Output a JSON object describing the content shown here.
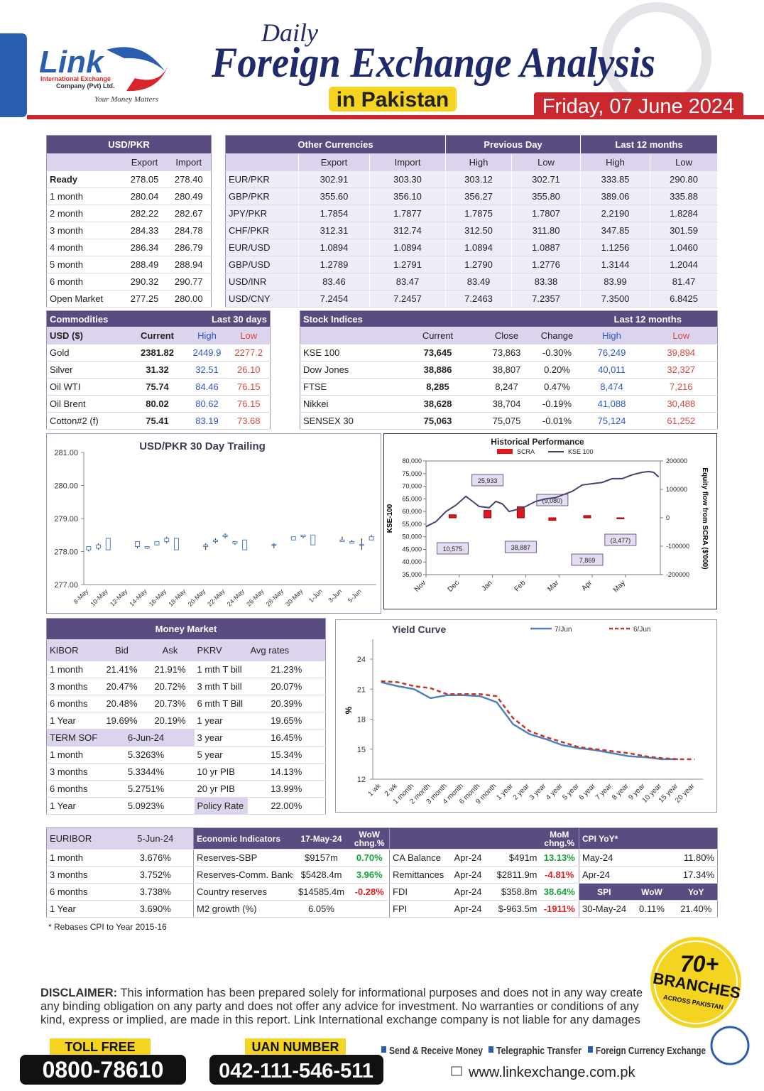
{
  "header": {
    "brand": "Link",
    "company_line1": "International Exchange",
    "company_line2": "Company (Pvt) Ltd.",
    "tagline": "Your Money Matters",
    "title_daily": "Daily",
    "title_main": "Foreign Exchange Analysis",
    "title_sub": "in Pakistan",
    "date": "Friday, 07 June 2024"
  },
  "usd_pkr": {
    "title": "USD/PKR",
    "columns": [
      "Export",
      "Import"
    ],
    "rows": [
      [
        "Ready",
        "278.05",
        "278.40"
      ],
      [
        "1 month",
        "280.04",
        "280.49"
      ],
      [
        "2 month",
        "282.22",
        "282.67"
      ],
      [
        "3 month",
        "284.33",
        "284.78"
      ],
      [
        "4 month",
        "286.34",
        "286.79"
      ],
      [
        "5 month",
        "288.49",
        "288.94"
      ],
      [
        "6 month",
        "290.32",
        "290.77"
      ],
      [
        "Open Market",
        "277.25",
        "280.00"
      ]
    ]
  },
  "other_currencies": {
    "title": "Other Currencies",
    "groups": [
      "Previous Day",
      "Last 12 months"
    ],
    "columns": [
      "Export",
      "Import",
      "High",
      "Low",
      "High",
      "Low"
    ],
    "rows": [
      [
        "EUR/PKR",
        "302.91",
        "303.30",
        "303.12",
        "302.71",
        "333.85",
        "290.80"
      ],
      [
        "GBP/PKR",
        "355.60",
        "356.10",
        "356.27",
        "355.80",
        "389.06",
        "335.88"
      ],
      [
        "JPY/PKR",
        "1.7854",
        "1.7877",
        "1.7875",
        "1.7807",
        "2.2190",
        "1.8284"
      ],
      [
        "CHF/PKR",
        "312.31",
        "312.74",
        "312.50",
        "311.80",
        "347.85",
        "301.59"
      ],
      [
        "EUR/USD",
        "1.0894",
        "1.0894",
        "1.0894",
        "1.0887",
        "1.1256",
        "1.0460"
      ],
      [
        "GBP/USD",
        "1.2789",
        "1.2791",
        "1.2790",
        "1.2776",
        "1.3144",
        "1.2044"
      ],
      [
        "USD/INR",
        "83.46",
        "83.47",
        "83.49",
        "83.38",
        "83.99",
        "81.47"
      ],
      [
        "USD/CNY",
        "7.2454",
        "7.2457",
        "7.2463",
        "7.2357",
        "7.3500",
        "6.8425"
      ]
    ]
  },
  "commodities": {
    "title": "Commodities",
    "period": "Last 30 days",
    "columns": [
      "USD ($)",
      "Current",
      "High",
      "Low"
    ],
    "rows": [
      [
        "Gold",
        "2381.82",
        "2449.9",
        "2277.2"
      ],
      [
        "Silver",
        "31.32",
        "32.51",
        "26.10"
      ],
      [
        "Oil WTI",
        "75.74",
        "84.46",
        "76.15"
      ],
      [
        "Oil Brent",
        "80.02",
        "80.62",
        "76.15"
      ],
      [
        "Cotton#2 (f)",
        "75.41",
        "83.19",
        "73.68"
      ]
    ]
  },
  "stock_indices": {
    "title": "Stock Indices",
    "period": "Last 12 months",
    "columns": [
      "Current",
      "Close",
      "Change",
      "High",
      "Low"
    ],
    "rows": [
      [
        "KSE 100",
        "73,645",
        "73,863",
        "-0.30%",
        "76,249",
        "39,894"
      ],
      [
        "Dow Jones",
        "38,886",
        "38,807",
        "0.20%",
        "40,011",
        "32,327"
      ],
      [
        "FTSE",
        "8,285",
        "8,247",
        "0.47%",
        "8,474",
        "7,216"
      ],
      [
        "Nikkei",
        "38,628",
        "38,704",
        "-0.19%",
        "41,088",
        "30,488"
      ],
      [
        "SENSEX 30",
        "75,063",
        "75,075",
        "-0.01%",
        "75,124",
        "61,252"
      ]
    ]
  },
  "money_market": {
    "title": "Money Market",
    "kibor_columns": [
      "KIBOR",
      "Bid",
      "Ask"
    ],
    "kibor": [
      [
        "1 month",
        "21.41%",
        "21.91%"
      ],
      [
        "3 months",
        "20.47%",
        "20.72%"
      ],
      [
        "6 months",
        "20.48%",
        "20.73%"
      ],
      [
        "1 Year",
        "19.69%",
        "20.19%"
      ]
    ],
    "sofr_header": [
      "TERM SOFR",
      "6-Jun-24"
    ],
    "sofr": [
      [
        "1 month",
        "5.3263%"
      ],
      [
        "3 months",
        "5.3344%"
      ],
      [
        "6 months",
        "5.2751%"
      ],
      [
        "1 Year",
        "5.0923%"
      ]
    ],
    "pkrv_columns": [
      "PKRV",
      "Avg rates"
    ],
    "pkrv": [
      [
        "1 mth T bill",
        "21.23%"
      ],
      [
        "3 mth T bill",
        "20.07%"
      ],
      [
        "6 mth T Bill",
        "20.39%"
      ],
      [
        "1 year",
        "19.65%"
      ],
      [
        "3 year",
        "16.45%"
      ],
      [
        "5 year",
        "15.34%"
      ],
      [
        "10 yr PIB",
        "14.13%"
      ],
      [
        "20 yr PIB",
        "13.99%"
      ],
      [
        "Policy Rate",
        "22.00%"
      ]
    ]
  },
  "euribor": {
    "header": [
      "EURIBOR",
      "5-Jun-24"
    ],
    "rows": [
      [
        "1 month",
        "3.676%"
      ],
      [
        "3 months",
        "3.752%"
      ],
      [
        "6 months",
        "3.738%"
      ],
      [
        "1 Year",
        "3.690%"
      ]
    ]
  },
  "economic_indicators": {
    "title": "Economic Indicators",
    "date": "17-May-24",
    "wow": "WoW chng.%",
    "mom": "MoM chng.%",
    "weekly": [
      [
        "Reserves-SBP",
        "$9157m",
        "0.70%"
      ],
      [
        "Reserves-Comm. Banks",
        "$5428.4m",
        "3.96%"
      ],
      [
        "Country reserves",
        "$14585.4m",
        "-0.28%"
      ],
      [
        "M2 growth (%)",
        "6.05%"
      ]
    ],
    "monthly": [
      [
        "CA Balance",
        "Apr-24",
        "$491m",
        "13.13%"
      ],
      [
        "Remittances",
        "Apr-24",
        "$2811.9m",
        "-4.81%"
      ],
      [
        "FDI",
        "Apr-24",
        "$358.8m",
        "38.64%"
      ],
      [
        "FPI",
        "Apr-24",
        "$-963.5m",
        "-1911%"
      ]
    ]
  },
  "cpi": {
    "title": "CPI YoY*",
    "rows": [
      [
        "May-24",
        "11.80%"
      ],
      [
        "Apr-24",
        "17.34%"
      ]
    ],
    "spi_columns": [
      "SPI",
      "WoW",
      "YoY"
    ],
    "spi": [
      [
        "30-May-24",
        "0.11%",
        "21.40%"
      ]
    ]
  },
  "footnote": "* Rebases CPI to Year 2015-16",
  "badge": {
    "count": "70+",
    "label": "BRANCHES",
    "sub": "ACROSS PAKISTAN"
  },
  "disclaimer": {
    "label": "DISCLAIMER:",
    "text": "This information has been prepared solely for informational purposes and does not in any way create any binding obligation on any  party and does not offer any advice for investment. No warranties or conditions of any kind, express or implied, are made in this report. Link International exchange company is not liable for any damages"
  },
  "footer": {
    "toll_free_label": "TOLL FREE",
    "toll_free": "0800-78610",
    "uan_label": "UAN NUMBER",
    "uan": "042-111-546-511",
    "services": [
      "Send & Receive Money",
      "Telegraphic Transfer",
      "Foreign Currency Exchange"
    ],
    "website": "www.linkexchange.com.pk"
  },
  "chart_data": [
    {
      "type": "candlestick",
      "title": "USD/PKR 30 Day Trailing",
      "color": "#4f81bd",
      "categories": [
        "8-May",
        null,
        "10-May",
        null,
        "12-May",
        null,
        "14-May",
        null,
        "16-May",
        null,
        "18-May",
        null,
        "20-May",
        null,
        "22-May",
        null,
        "24-May",
        null,
        "26-May",
        null,
        "28-May",
        null,
        "30-May",
        null,
        "1-Jun",
        null,
        "3-Jun",
        null,
        "5-Jun",
        null
      ],
      "open": [
        278.05,
        278.1,
        278.05,
        null,
        null,
        278.15,
        278.1,
        278.2,
        278.3,
        278.05,
        null,
        null,
        278.15,
        278.3,
        278.45,
        278.25,
        278.05,
        null,
        null,
        278.2,
        null,
        278.35,
        278.45,
        278.2,
        null,
        null,
        278.3,
        278.25,
        278.2,
        278.35
      ],
      "high": [
        278.15,
        278.25,
        278.4,
        null,
        null,
        278.3,
        278.15,
        278.3,
        278.45,
        278.4,
        null,
        null,
        278.25,
        278.4,
        278.55,
        278.3,
        278.35,
        null,
        null,
        278.25,
        null,
        278.45,
        278.5,
        278.5,
        null,
        null,
        278.45,
        278.35,
        278.4,
        278.5
      ],
      "low": [
        278.0,
        278.05,
        278.05,
        null,
        null,
        278.1,
        278.08,
        278.18,
        278.25,
        278.05,
        null,
        null,
        278.05,
        278.25,
        278.4,
        278.2,
        278.05,
        null,
        null,
        278.1,
        null,
        278.35,
        278.4,
        278.2,
        null,
        null,
        278.3,
        278.25,
        278.05,
        278.35
      ],
      "close": [
        278.15,
        278.2,
        278.4,
        null,
        null,
        278.3,
        278.15,
        278.3,
        278.4,
        278.4,
        null,
        null,
        278.2,
        278.35,
        278.5,
        278.3,
        278.35,
        null,
        null,
        278.21,
        null,
        278.45,
        278.5,
        278.5,
        null,
        null,
        278.35,
        278.3,
        278.21,
        278.45
      ],
      "ylim": [
        277,
        281
      ],
      "yticks": [
        {
          "value": 277,
          "label": "277.00"
        },
        {
          "value": 278,
          "label": "278.00"
        },
        {
          "value": 279,
          "label": "279.00"
        },
        {
          "value": 280,
          "label": "280.00"
        },
        {
          "value": 281,
          "label": "281.00"
        }
      ]
    },
    {
      "type": "combo",
      "title": "Historical Performance",
      "ylabel": "KSE-100",
      "y2label": "Equity flow from SCRA ($'000)",
      "xlim": [
        0,
        7.05
      ],
      "xticks": [
        {
          "value": 0,
          "label": "Nov"
        },
        {
          "value": 1,
          "label": "Dec"
        },
        {
          "value": 2,
          "label": "Jan"
        },
        {
          "value": 3,
          "label": "Feb"
        },
        {
          "value": 4,
          "label": "Mar"
        },
        {
          "value": 5,
          "label": "Apr"
        },
        {
          "value": 6,
          "label": "May"
        }
      ],
      "ylim": [
        35000,
        80000
      ],
      "yticks": [
        {
          "value": 35000,
          "label": "35,000"
        },
        {
          "value": 40000,
          "label": "40,000"
        },
        {
          "value": 45000,
          "label": "45,000"
        },
        {
          "value": 50000,
          "label": "50,000"
        },
        {
          "value": 55000,
          "label": "55,000"
        },
        {
          "value": 60000,
          "label": "60,000"
        },
        {
          "value": 65000,
          "label": "65,000"
        },
        {
          "value": 70000,
          "label": "70,000"
        },
        {
          "value": 75000,
          "label": "75,000"
        },
        {
          "value": 80000,
          "label": "80,000"
        }
      ],
      "y2lim": [
        -200000,
        200000
      ],
      "y2ticks": [
        -200000,
        -100000,
        0,
        100000,
        200000
      ],
      "series": [
        {
          "name": "SCRA",
          "type": "bar",
          "axis": "y2",
          "color": "#e3161d",
          "x": [
            0.8,
            1.85,
            2.85,
            3.8,
            4.85,
            5.85
          ],
          "values": [
            10575,
            25933,
            38887,
            -9080,
            7869,
            -3477
          ],
          "value_labels": [
            "10,575",
            "25,933",
            "38,887",
            "(9,080)",
            "7,869",
            "(3,477)"
          ]
        },
        {
          "name": "KSE 100",
          "type": "line",
          "color": "#4b3f72",
          "x": [
            0,
            0.3,
            0.6,
            0.9,
            1.2,
            1.4,
            1.6,
            1.9,
            2.1,
            2.3,
            2.5,
            2.8,
            3.0,
            3.3,
            3.6,
            3.9,
            4.1,
            4.4,
            4.7,
            5.0,
            5.3,
            5.6,
            5.9,
            6.2,
            6.5,
            6.7,
            6.85,
            7.0
          ],
          "values": [
            54000,
            56000,
            60000,
            62500,
            66000,
            64000,
            62000,
            61500,
            64000,
            63000,
            60000,
            61000,
            62000,
            64000,
            65000,
            65500,
            66500,
            68000,
            70500,
            71000,
            71500,
            73000,
            73000,
            74500,
            75500,
            75800,
            75500,
            73645
          ]
        }
      ]
    },
    {
      "type": "line",
      "title": "Yield Curve",
      "ylabel": "%",
      "categories": [
        "1 wk",
        "2 wk",
        "1 month",
        "2 month",
        "3 month",
        "4 month",
        "6 month",
        "9 month",
        "1 year",
        "2 year",
        "3 year",
        "4 year",
        "5 year",
        "6 year",
        "7 year",
        "8 year",
        "9 year",
        "10 year",
        "15 year",
        "20 year"
      ],
      "ylim": [
        12,
        24
      ],
      "yticks": [
        12,
        15,
        18,
        21,
        24
      ],
      "series": [
        {
          "name": "7/Jun",
          "color": "#4f81bd",
          "dashed": false,
          "values": [
            21.7,
            21.3,
            21.0,
            20.1,
            20.4,
            20.4,
            20.3,
            19.7,
            17.5,
            16.5,
            16.0,
            15.4,
            15.1,
            14.9,
            14.6,
            14.3,
            14.2,
            14.0,
            14.0,
            null
          ]
        },
        {
          "name": "6/Jun",
          "color": "#c0392b",
          "dashed": true,
          "values": [
            21.8,
            21.7,
            21.3,
            21.1,
            20.5,
            20.5,
            20.5,
            20.3,
            18.1,
            16.8,
            16.2,
            15.7,
            15.2,
            15.0,
            14.8,
            14.6,
            14.3,
            14.1,
            14.0,
            14.0
          ]
        }
      ]
    }
  ]
}
